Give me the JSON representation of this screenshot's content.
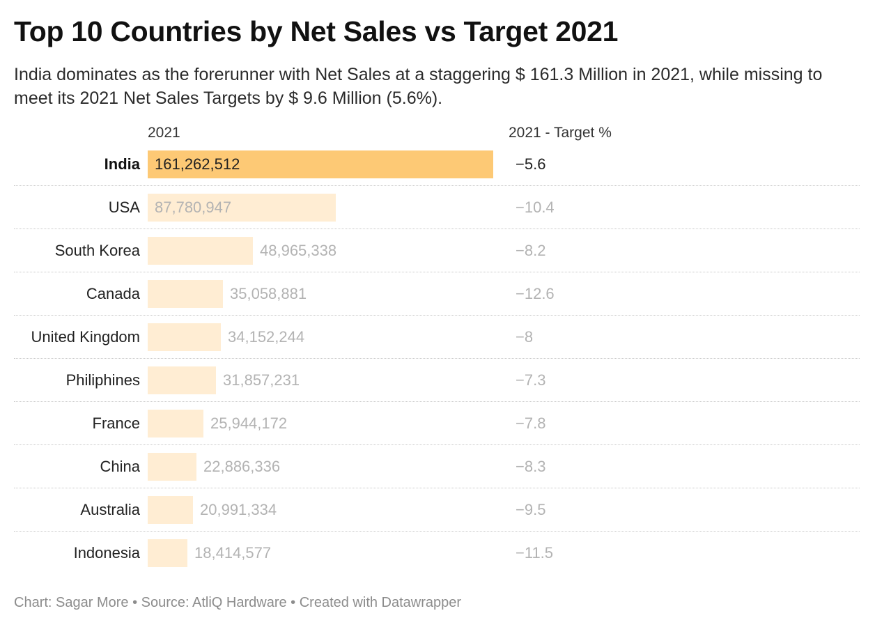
{
  "header": {
    "title": "Top 10 Countries by Net Sales vs Target 2021",
    "subtitle": "India dominates as the forerunner with Net Sales at a staggering $ 161.3 Million in 2021, while missing to meet its 2021 Net Sales Targets by $ 9.6 Million (5.6%)."
  },
  "footer": {
    "text": "Chart: Sagar More • Source: AtliQ Hardware • Created with Datawrapper"
  },
  "colors": {
    "highlight_bar": "#fdc975",
    "muted_bar": "#ffedd3"
  },
  "chart_data": {
    "type": "bar",
    "orientation": "horizontal",
    "title": "Top 10 Countries by Net Sales vs Target 2021",
    "value_column_label": "2021",
    "target_column_label": "2021 - Target %",
    "categories": [
      "India",
      "USA",
      "South Korea",
      "Canada",
      "United Kingdom",
      "Philiphines",
      "France",
      "China",
      "Australia",
      "Indonesia"
    ],
    "values": [
      161262512,
      87780947,
      48965338,
      35058881,
      34152244,
      31857231,
      25944172,
      22886336,
      20991334,
      18414577
    ],
    "value_labels": [
      "161,262,512",
      "87,780,947",
      "48,965,338",
      "35,058,881",
      "34,152,244",
      "31,857,231",
      "25,944,172",
      "22,886,336",
      "20,991,334",
      "18,414,577"
    ],
    "target_pct": [
      -5.6,
      -10.4,
      -8.2,
      -12.6,
      -8,
      -7.3,
      -7.8,
      -8.3,
      -9.5,
      -11.5
    ],
    "target_pct_labels": [
      "−5.6",
      "−10.4",
      "−8.2",
      "−12.6",
      "−8",
      "−7.3",
      "−7.8",
      "−8.3",
      "−9.5",
      "−11.5"
    ],
    "highlighted": "India",
    "xlim": [
      0,
      161262512
    ],
    "grid": false,
    "legend": "none"
  }
}
